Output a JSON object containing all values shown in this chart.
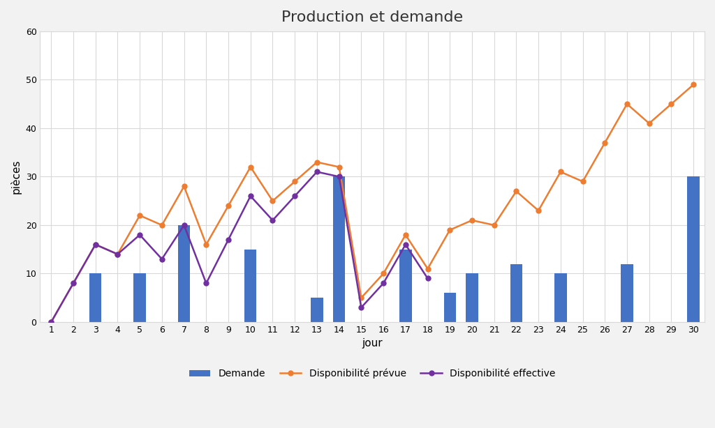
{
  "title": "Production et demande",
  "xlabel": "jour",
  "ylabel": "pièces",
  "days": [
    1,
    2,
    3,
    4,
    5,
    6,
    7,
    8,
    9,
    10,
    11,
    12,
    13,
    14,
    15,
    16,
    17,
    18,
    19,
    20,
    21,
    22,
    23,
    24,
    25,
    26,
    27,
    28,
    29,
    30
  ],
  "demande": [
    0,
    0,
    10,
    0,
    10,
    0,
    20,
    0,
    0,
    15,
    0,
    0,
    5,
    30,
    0,
    0,
    15,
    0,
    6,
    10,
    0,
    12,
    0,
    10,
    0,
    0,
    12,
    0,
    0,
    30
  ],
  "dispo_prevue": [
    0,
    8,
    16,
    14,
    22,
    20,
    28,
    16,
    24,
    32,
    25,
    29,
    33,
    32,
    5,
    10,
    18,
    11,
    19,
    21,
    20,
    27,
    23,
    31,
    29,
    37,
    45,
    41,
    45,
    49
  ],
  "dispo_effective": [
    0,
    8,
    16,
    14,
    18,
    13,
    20,
    8,
    17,
    26,
    21,
    26,
    31,
    30,
    3,
    8,
    16,
    9,
    null,
    null,
    null,
    null,
    null,
    null,
    null,
    null,
    null,
    null,
    null,
    null
  ],
  "bar_color": "#4472c4",
  "orange_color": "#ed7d31",
  "purple_color": "#7030a0",
  "ylim": [
    0,
    60
  ],
  "yticks": [
    0,
    10,
    20,
    30,
    40,
    50,
    60
  ],
  "figure_facecolor": "#f2f2f2",
  "plot_facecolor": "#ffffff",
  "grid_color": "#d9d9d9",
  "spine_color": "#d9d9d9",
  "legend_labels": [
    "Demande",
    "Disponibilité prévue",
    "Disponibilité effective"
  ],
  "title_fontsize": 16,
  "tick_fontsize": 9,
  "axis_label_fontsize": 11,
  "legend_fontsize": 10,
  "bar_width": 0.55,
  "line_width": 1.8,
  "marker_size": 5
}
